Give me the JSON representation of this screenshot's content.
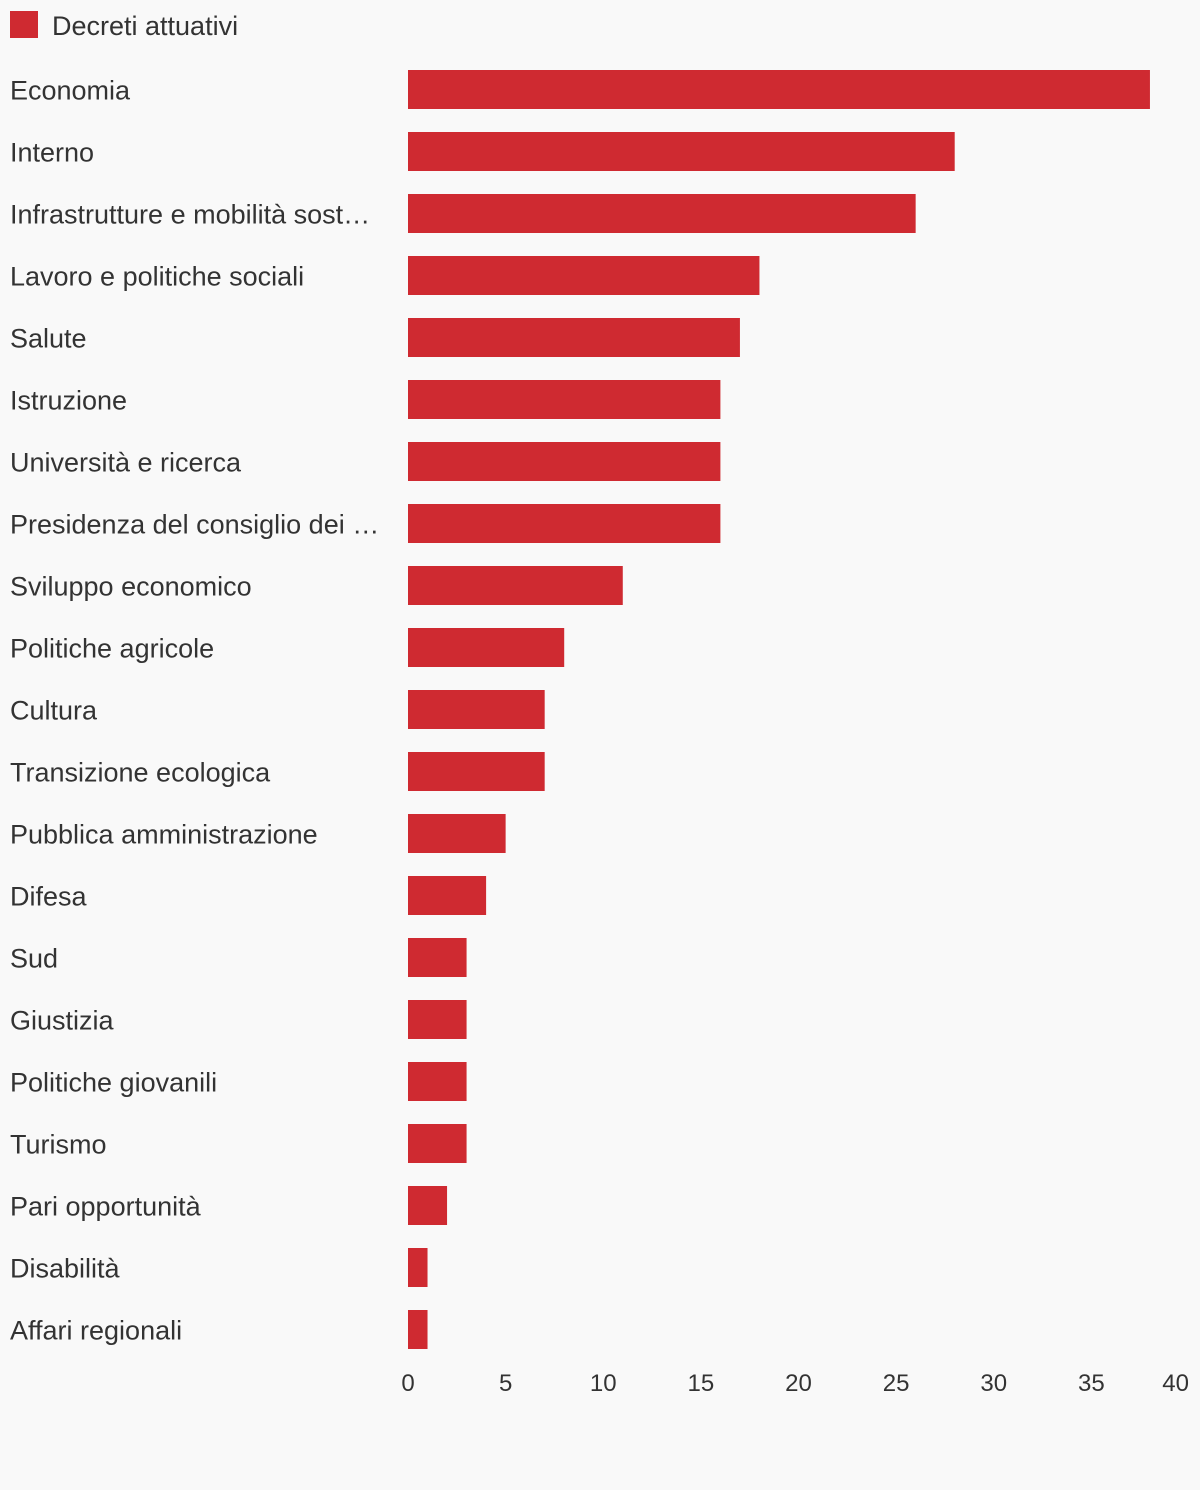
{
  "chart_data": {
    "type": "bar",
    "orientation": "horizontal",
    "title": "",
    "xlabel": "",
    "ylabel": "",
    "legend": {
      "placement": "top-left",
      "entries": [
        "Decreti attuativi"
      ]
    },
    "categories": [
      "Economia",
      "Interno",
      "Infrastrutture e mobilità sost…",
      "Lavoro e politiche sociali",
      "Salute",
      "Istruzione",
      "Università e ricerca",
      "Presidenza del consiglio dei …",
      "Sviluppo economico",
      "Politiche agricole",
      "Cultura",
      "Transizione ecologica",
      "Pubblica amministrazione",
      "Difesa",
      "Sud",
      "Giustizia",
      "Politiche giovanili",
      "Turismo",
      "Pari opportunità",
      "Disabilità",
      "Affari regionali"
    ],
    "series": [
      {
        "name": "Decreti attuativi",
        "color": "#cf2a31",
        "values": [
          38,
          28,
          26,
          18,
          17,
          16,
          16,
          16,
          11,
          8,
          7,
          7,
          5,
          4,
          3,
          3,
          3,
          3,
          2,
          1,
          1
        ]
      }
    ],
    "xlim": [
      0,
      40
    ],
    "xticks": [
      "0",
      "5",
      "10",
      "15",
      "20",
      "25",
      "30",
      "35",
      "40"
    ],
    "grid": false
  }
}
